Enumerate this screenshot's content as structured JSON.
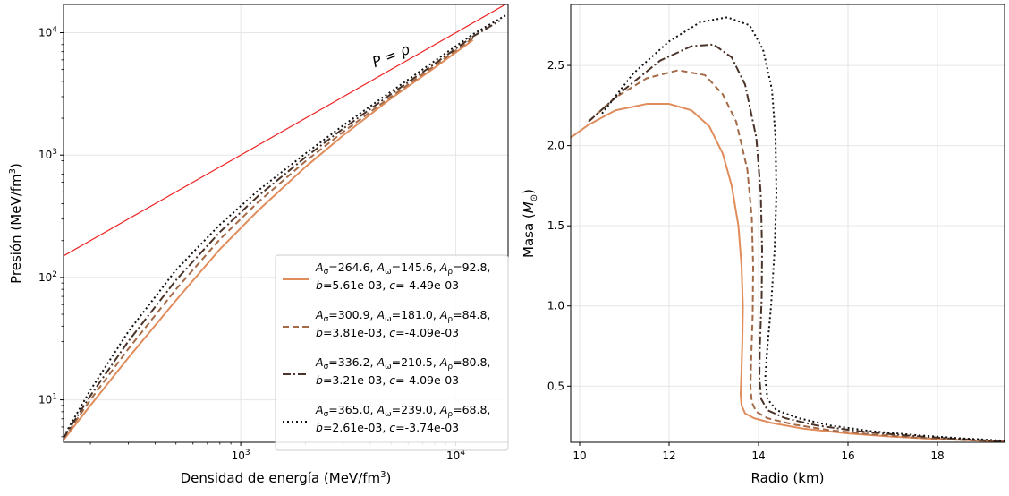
{
  "chart_data": [
    {
      "type": "line",
      "xlabel": "Densidad de energía (MeV/fm³)",
      "ylabel": "Presión (MeV/fm³)",
      "xscale": "log",
      "yscale": "log",
      "xlim": [
        150,
        17500
      ],
      "ylim": [
        4.5,
        17000
      ],
      "x_ticks": [
        {
          "value": 1000,
          "base": "10",
          "exp": "3"
        },
        {
          "value": 10000,
          "base": "10",
          "exp": "4"
        }
      ],
      "y_ticks": [
        {
          "value": 10,
          "base": "10",
          "exp": "1"
        },
        {
          "value": 100,
          "base": "10",
          "exp": "2"
        },
        {
          "value": 1000,
          "base": "10",
          "exp": "3"
        },
        {
          "value": 10000,
          "base": "10",
          "exp": "4"
        }
      ],
      "grid": true,
      "legend_position": "lower-right",
      "annotation": {
        "text": "P = ρ"
      },
      "reference_line": {
        "x": [
          150,
          17500
        ],
        "y": [
          150,
          17500
        ],
        "color": "#ee2222"
      },
      "series": [
        {
          "legend": [
            "A",
            "σ",
            "=264.6, ",
            "A",
            "ω",
            "=145.6, ",
            "A",
            "ρ",
            "=92.8,"
          ],
          "legend_line2": [
            "b",
            "=5.61e-03, ",
            "c",
            "=-4.49e-03"
          ],
          "color": "#e08c5b",
          "dash": "solid",
          "x": [
            150,
            200,
            300,
            500,
            800,
            1200,
            2000,
            3000,
            5000,
            8000,
            12000
          ],
          "y": [
            4.7,
            9,
            22,
            65,
            170,
            350,
            800,
            1450,
            2900,
            5200,
            8700
          ]
        },
        {
          "legend": [
            "A",
            "σ",
            "=300.9, ",
            "A",
            "ω",
            "=181.0, ",
            "A",
            "ρ",
            "=84.8,"
          ],
          "legend_line2": [
            "b",
            "=3.81e-03, ",
            "c",
            "=-4.09e-03"
          ],
          "color": "#a46a48",
          "dash": "dashed",
          "x": [
            150,
            200,
            300,
            500,
            800,
            1200,
            2000,
            3000,
            5000,
            8000,
            12000
          ],
          "y": [
            4.8,
            10,
            26,
            80,
            205,
            410,
            890,
            1550,
            3000,
            5400,
            9000
          ]
        },
        {
          "legend": [
            "A",
            "σ",
            "=336.2, ",
            "A",
            "ω",
            "=210.5, ",
            "A",
            "ρ",
            "=80.8,"
          ],
          "legend_line2": [
            "b",
            "=3.21e-03, ",
            "c",
            "=-4.09e-03"
          ],
          "color": "#4a3328",
          "dash": "dashdot",
          "x": [
            150,
            200,
            300,
            500,
            800,
            1200,
            2000,
            3000,
            5000,
            8000,
            12000,
            16000
          ],
          "y": [
            4.9,
            10.8,
            30,
            95,
            235,
            460,
            960,
            1650,
            3150,
            5600,
            9300,
            12500
          ]
        },
        {
          "legend": [
            "A",
            "σ",
            "=365.0, ",
            "A",
            "ω",
            "=239.0, ",
            "A",
            "ρ",
            "=68.8,"
          ],
          "legend_line2": [
            "b",
            "=2.61e-03, ",
            "c",
            "=-3.74e-03"
          ],
          "color": "#111111",
          "dash": "dotted",
          "x": [
            150,
            200,
            300,
            500,
            800,
            1200,
            2000,
            3000,
            5000,
            8000,
            12000,
            17000
          ],
          "y": [
            5,
            12,
            36,
            115,
            270,
            510,
            1030,
            1750,
            3300,
            5900,
            9700,
            13800
          ]
        }
      ]
    },
    {
      "type": "line",
      "xlabel": "Radio (km)",
      "ylabel": "Masa (M⊙)",
      "ylabel_parts": [
        "Masa (",
        "M",
        "⊙",
        ")"
      ],
      "xlim": [
        9.8,
        19.5
      ],
      "ylim": [
        0.15,
        2.88
      ],
      "x_ticks": [
        10,
        12,
        14,
        16,
        18
      ],
      "y_ticks": [
        0.5,
        1.0,
        1.5,
        2.0,
        2.5
      ],
      "y_tick_labels": [
        "0.5",
        "1.0",
        "1.5",
        "2.0",
        "2.5"
      ],
      "grid": true,
      "series": [
        {
          "color": "#e08c5b",
          "dash": "solid",
          "x": [
            9.8,
            10.2,
            10.8,
            11.5,
            12.0,
            12.5,
            12.9,
            13.2,
            13.4,
            13.55,
            13.62,
            13.65,
            13.64,
            13.62,
            13.6,
            13.62,
            13.7,
            13.9,
            14.3,
            15.0,
            16.0,
            17.0,
            18.0,
            19.0,
            19.5
          ],
          "y": [
            2.05,
            2.13,
            2.22,
            2.26,
            2.26,
            2.22,
            2.12,
            1.95,
            1.75,
            1.5,
            1.25,
            1.0,
            0.8,
            0.6,
            0.45,
            0.38,
            0.33,
            0.3,
            0.27,
            0.235,
            0.205,
            0.185,
            0.17,
            0.16,
            0.155
          ]
        },
        {
          "color": "#a46a48",
          "dash": "dashed",
          "x": [
            10.2,
            10.8,
            11.5,
            12.2,
            12.8,
            13.2,
            13.5,
            13.75,
            13.85,
            13.88,
            13.87,
            13.84,
            13.82,
            13.85,
            13.95,
            14.2,
            14.8,
            15.6,
            16.5,
            17.5,
            18.5,
            19.5
          ],
          "y": [
            2.15,
            2.3,
            2.42,
            2.47,
            2.44,
            2.32,
            2.15,
            1.85,
            1.55,
            1.25,
            0.95,
            0.7,
            0.5,
            0.4,
            0.34,
            0.3,
            0.26,
            0.225,
            0.2,
            0.18,
            0.165,
            0.155
          ]
        },
        {
          "color": "#4a3328",
          "dash": "dashdot",
          "x": [
            10.2,
            11.0,
            11.8,
            12.5,
            13.0,
            13.4,
            13.7,
            13.95,
            14.05,
            14.08,
            14.07,
            14.03,
            14.02,
            14.06,
            14.2,
            14.6,
            15.3,
            16.2,
            17.2,
            18.2,
            19.2,
            19.5
          ],
          "y": [
            2.15,
            2.35,
            2.53,
            2.62,
            2.63,
            2.55,
            2.38,
            2.05,
            1.7,
            1.35,
            1.05,
            0.75,
            0.55,
            0.42,
            0.35,
            0.3,
            0.255,
            0.22,
            0.195,
            0.175,
            0.16,
            0.155
          ]
        },
        {
          "color": "#111111",
          "dash": "dotted",
          "x": [
            10.5,
            11.2,
            12.0,
            12.7,
            13.3,
            13.8,
            14.1,
            14.3,
            14.38,
            14.4,
            14.36,
            14.28,
            14.2,
            14.15,
            14.2,
            14.4,
            14.9,
            15.6,
            16.5,
            17.5,
            18.5,
            19.5
          ],
          "y": [
            2.2,
            2.45,
            2.65,
            2.77,
            2.8,
            2.75,
            2.6,
            2.35,
            2.05,
            1.7,
            1.35,
            1.0,
            0.75,
            0.55,
            0.42,
            0.35,
            0.3,
            0.255,
            0.22,
            0.195,
            0.175,
            0.16
          ]
        }
      ]
    }
  ]
}
